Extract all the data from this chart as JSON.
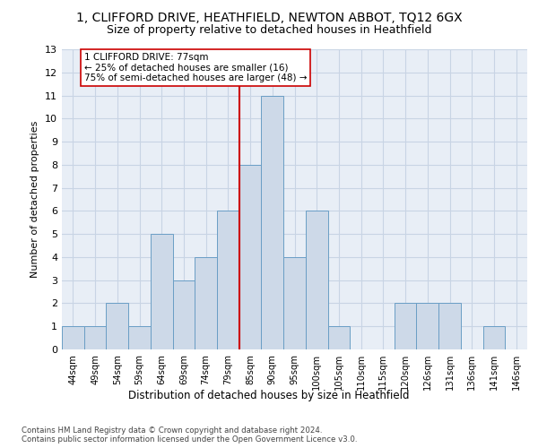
{
  "title1": "1, CLIFFORD DRIVE, HEATHFIELD, NEWTON ABBOT, TQ12 6GX",
  "title2": "Size of property relative to detached houses in Heathfield",
  "xlabel": "Distribution of detached houses by size in Heathfield",
  "ylabel": "Number of detached properties",
  "footnote": "Contains HM Land Registry data © Crown copyright and database right 2024.\nContains public sector information licensed under the Open Government Licence v3.0.",
  "categories": [
    "44sqm",
    "49sqm",
    "54sqm",
    "59sqm",
    "64sqm",
    "69sqm",
    "74sqm",
    "79sqm",
    "85sqm",
    "90sqm",
    "95sqm",
    "100sqm",
    "105sqm",
    "110sqm",
    "115sqm",
    "120sqm",
    "126sqm",
    "131sqm",
    "136sqm",
    "141sqm",
    "146sqm"
  ],
  "values": [
    1,
    1,
    2,
    1,
    5,
    3,
    4,
    6,
    8,
    11,
    4,
    6,
    1,
    0,
    0,
    2,
    2,
    2,
    0,
    1,
    0
  ],
  "bar_color": "#cdd9e8",
  "bar_edge_color": "#6a9ec5",
  "vline_x": 7.5,
  "vline_color": "#cc0000",
  "annotation_text": "1 CLIFFORD DRIVE: 77sqm\n← 25% of detached houses are smaller (16)\n75% of semi-detached houses are larger (48) →",
  "annotation_box_edge": "#cc0000",
  "ylim": [
    0,
    13
  ],
  "yticks": [
    0,
    1,
    2,
    3,
    4,
    5,
    6,
    7,
    8,
    9,
    10,
    11,
    12,
    13
  ],
  "grid_color": "#c8d4e4",
  "bg_color": "#e8eef6",
  "title1_fontsize": 10,
  "title2_fontsize": 9
}
